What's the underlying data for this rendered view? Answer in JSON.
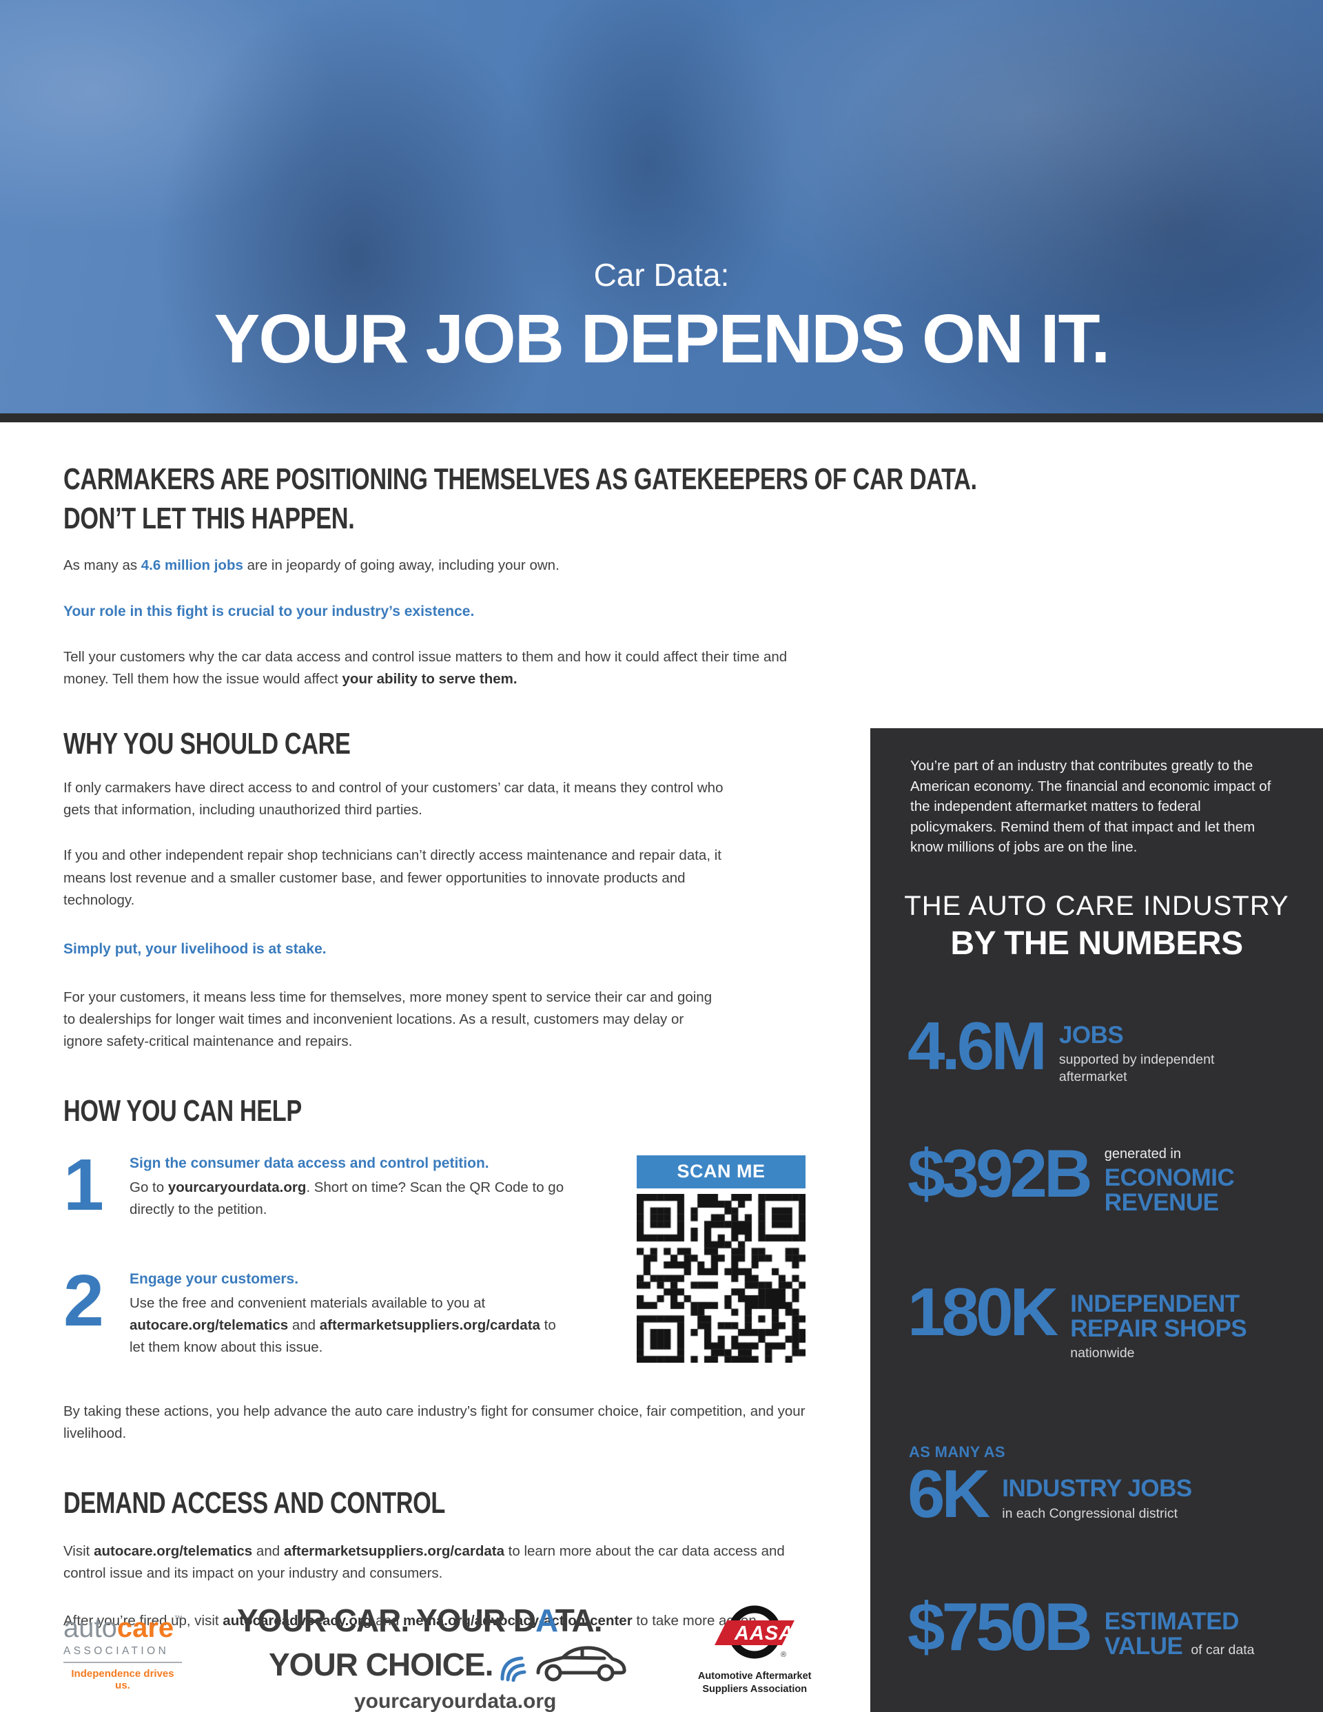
{
  "colors": {
    "accent_blue": "#3a7bbd",
    "scanme_blue": "#3d86c6",
    "sidebar_bg": "#2f2e31",
    "divider_strip": "#2d2c2c",
    "hero_blue": "#4b78b1",
    "autocare_orange": "#f47b20",
    "aasa_red": "#cf202e"
  },
  "hero": {
    "kicker": "Car Data:",
    "title": "YOUR JOB DEPENDS ON IT."
  },
  "intro": {
    "heading_line1": "CARMAKERS ARE POSITIONING THEMSELVES AS GATEKEEPERS OF CAR DATA.",
    "heading_line2": "DON’T LET THIS HAPPEN.",
    "jobs": {
      "s1": "As many as ",
      "s2": "4.6 million jobs",
      "s3": " are in jeopardy of going away, including your own."
    },
    "statement": "Your role in this fight is crucial to your industry’s existence.",
    "tell": {
      "s1": "Tell your customers why the car data access and control issue matters to them and how it could affect their time and money. Tell them how the issue would affect ",
      "s2": "your ability to serve them."
    }
  },
  "why": {
    "heading": "WHY YOU SHOULD CARE",
    "p1": "If only carmakers have direct access to and control of your customers’ car data, it means they control who gets that information, including unauthorized third parties.",
    "p2": "If you and other independent repair shop technicians can’t directly access maintenance and repair data, it means lost revenue and a smaller customer base, and fewer opportunities to innovate products and technology.",
    "statement": "Simply put, your livelihood is at stake.",
    "p3": "For your customers, it means less time for themselves, more money spent to service their car and going to dealerships for longer wait times and inconvenient locations. As a result, customers may delay or ignore safety-critical maintenance and repairs."
  },
  "how": {
    "heading": "HOW YOU CAN HELP",
    "scan_me": "SCAN ME",
    "steps": [
      {
        "num": "1",
        "lead": "Sign the consumer data access and control petition.",
        "body": {
          "s1": "Go to ",
          "s2": "yourcaryourdata.org",
          "s3": ". Short on time? Scan the QR Code to go directly to the petition."
        }
      },
      {
        "num": "2",
        "lead": "Engage your customers.",
        "body": {
          "s1": "Use the free and convenient materials available to you at ",
          "s2": "autocare.org/telematics",
          "s3": " and ",
          "s4": "aftermarketsuppliers.org/cardata",
          "s5": " to let them know about this issue."
        }
      }
    ],
    "closing": "By taking these actions, you help advance the auto care industry’s fight for consumer choice, fair competition, and your livelihood."
  },
  "demand": {
    "heading": "DEMAND ACCESS AND CONTROL",
    "visit": {
      "s1": "Visit ",
      "s2": "autocare.org/telematics",
      "s3": " and ",
      "s4": "aftermarketsuppliers.org/cardata",
      "s5": " to learn more about the car data access and control issue and its impact on your industry and consumers."
    },
    "fired": {
      "s1": "After you’re fired up, visit ",
      "s2": "autocareadvocacy.org",
      "s3": " and ",
      "s4": "mema.org/advocacy-action-center",
      "s5": " to take more action."
    }
  },
  "footer": {
    "autocare": {
      "word1": "auto",
      "word2": "care",
      "tm": "™",
      "line2": "ASSOCIATION",
      "tagline": "Independence drives us."
    },
    "ycyd": {
      "line1_a": "YOUR CAR. YOUR D",
      "line1_b": "A",
      "line1_c": "TA.",
      "line2": "YOUR CHOICE.",
      "url": "yourcaryourdata.org"
    },
    "aasa": {
      "name": "AASA",
      "reg": "®",
      "line1": "Automotive Aftermarket",
      "line2": "Suppliers Association"
    }
  },
  "sidebar": {
    "intro": "You’re part of an industry that contributes greatly to the American economy. The financial and economic impact of the independent aftermarket matters to federal policymakers. Remind them of that impact and let them know millions of jobs are on the line.",
    "title_line1": "THE AUTO CARE INDUSTRY",
    "title_line2": "BY THE NUMBERS",
    "stats": [
      {
        "value": "4.6M",
        "label1": "JOBS",
        "sub": "supported by independent aftermarket"
      },
      {
        "pre": "generated in",
        "value": "$392B",
        "label1": "ECONOMIC",
        "label2": "REVENUE"
      },
      {
        "value": "180K",
        "label1": "INDEPENDENT",
        "label2": "REPAIR SHOPS",
        "sub": "nationwide"
      },
      {
        "pre": "AS MANY AS",
        "value": "6K",
        "label1": "INDUSTRY JOBS",
        "sub": "in each Congressional district"
      },
      {
        "value": "$750B",
        "label1": "ESTIMATED",
        "label2": "VALUE",
        "sub": "of car data"
      }
    ]
  }
}
